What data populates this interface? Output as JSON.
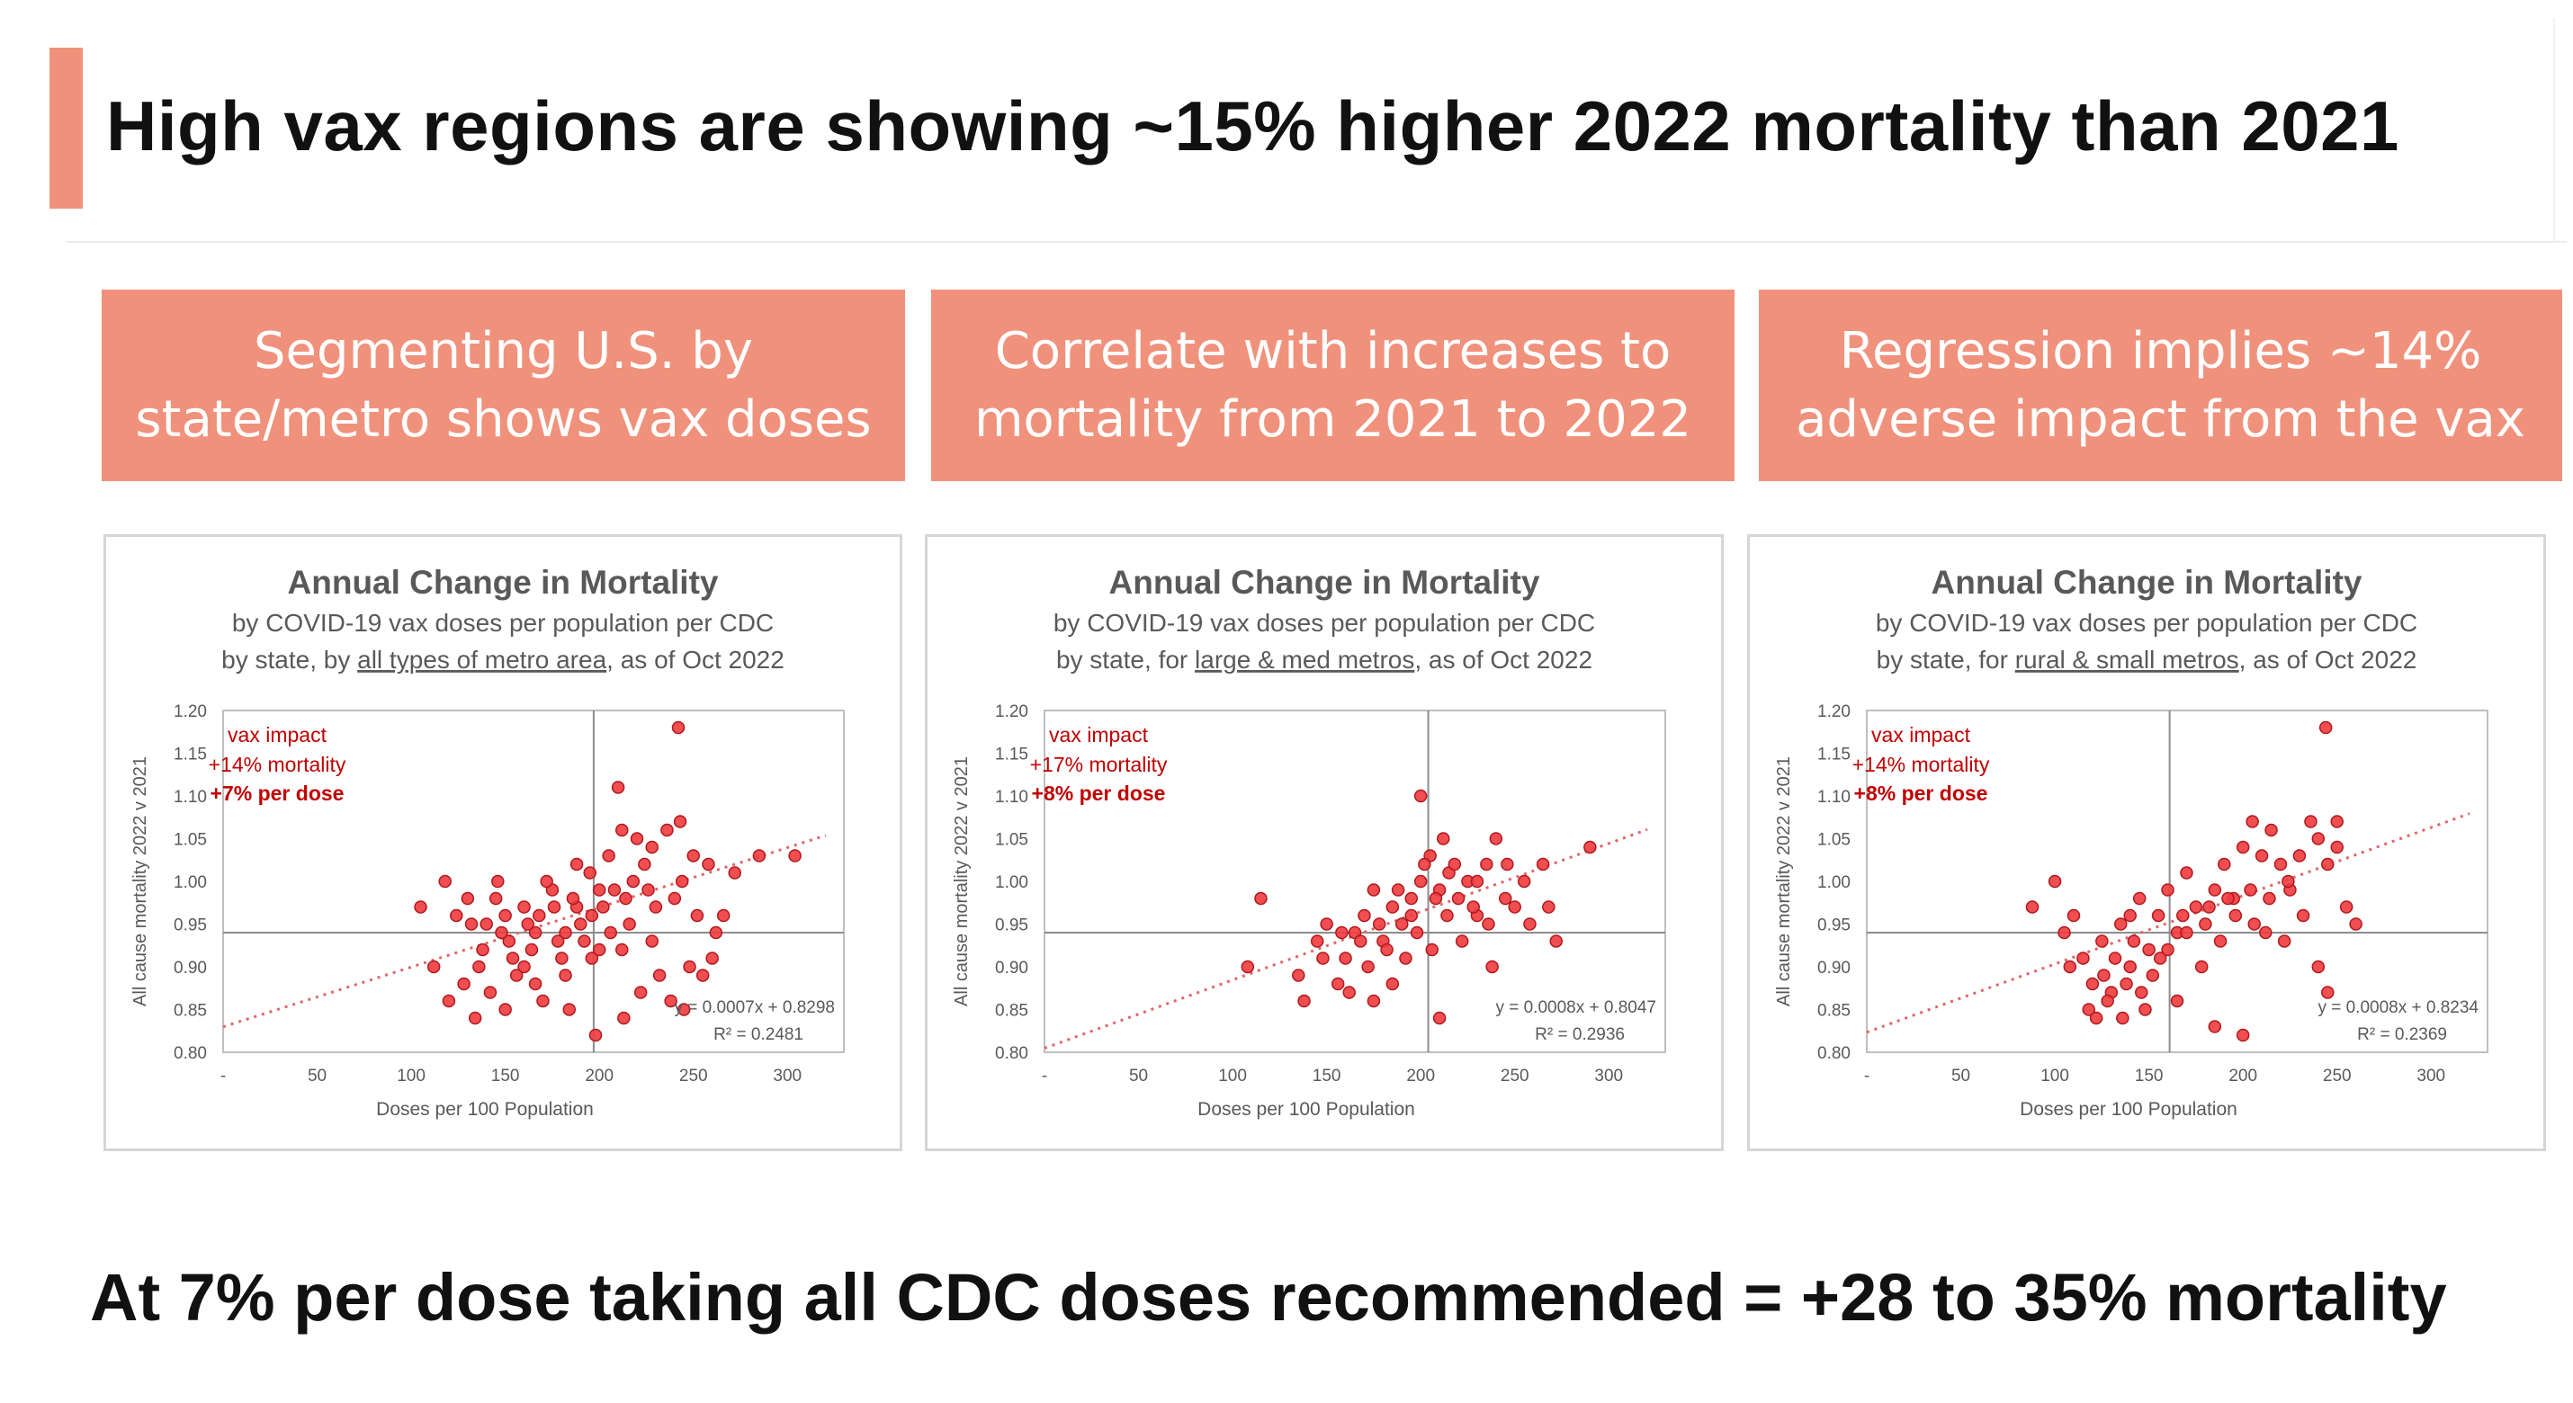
{
  "title": "High vax regions are showing ~15% higher 2022 mortality than 2021",
  "banners": [
    "Segmenting U.S. by\nstate/metro shows vax doses",
    "Correlate with increases to\nmortality from 2021 to 2022",
    "Regression implies ~14%\nadverse impact from the vax"
  ],
  "footer": "At 7% per dose taking all CDC doses recommended = +28 to 35% mortality",
  "colors": {
    "accent": "#f0917c",
    "points": "#e8292f",
    "annotation": "#c00000"
  },
  "chart_data": [
    {
      "type": "scatter",
      "title": "Annual Change in Mortality",
      "subtitle_line1": "by COVID-19 vax doses per population per CDC",
      "subtitle_line2_pre": "by state, by ",
      "subtitle_line2_link": "all types of metro area",
      "subtitle_line2_post": ", as of Oct 2022",
      "xlabel": "Doses per 100 Population",
      "ylabel": "All cause mortality 2022 v 2021",
      "xlim": [
        0,
        330
      ],
      "ylim": [
        0.8,
        1.2
      ],
      "x_ticks": [
        "-",
        "50",
        "100",
        "150",
        "200",
        "250",
        "300"
      ],
      "y_ticks": [
        "0.80",
        "0.85",
        "0.90",
        "0.95",
        "1.00",
        "1.05",
        "1.10",
        "1.15",
        "1.20"
      ],
      "ref_x": 197,
      "ref_y": 0.94,
      "annotation": [
        "vax impact",
        "+14% mortality",
        "+7% per dose"
      ],
      "trend": {
        "slope": 0.0007,
        "intercept": 0.8298
      },
      "equation": "y = 0.0007x + 0.8298",
      "r2": "R² = 0.2481",
      "points": [
        [
          105,
          0.97
        ],
        [
          118,
          1.0
        ],
        [
          132,
          0.95
        ],
        [
          138,
          0.92
        ],
        [
          145,
          0.98
        ],
        [
          152,
          0.93
        ],
        [
          160,
          0.9
        ],
        [
          168,
          0.96
        ],
        [
          175,
          0.99
        ],
        [
          182,
          0.94
        ],
        [
          188,
          0.97
        ],
        [
          195,
          1.01
        ],
        [
          128,
          0.88
        ],
        [
          142,
          0.87
        ],
        [
          156,
          0.89
        ],
        [
          170,
          0.86
        ],
        [
          184,
          0.85
        ],
        [
          198,
          0.82
        ],
        [
          213,
          0.84
        ],
        [
          222,
          0.87
        ],
        [
          232,
          0.89
        ],
        [
          245,
          0.85
        ],
        [
          255,
          0.89
        ],
        [
          238,
          0.86
        ],
        [
          205,
          1.03
        ],
        [
          212,
          1.06
        ],
        [
          220,
          1.05
        ],
        [
          228,
          1.04
        ],
        [
          236,
          1.06
        ],
        [
          243,
          1.07
        ],
        [
          250,
          1.03
        ],
        [
          258,
          1.02
        ],
        [
          266,
          0.96
        ],
        [
          272,
          1.01
        ],
        [
          285,
          1.03
        ],
        [
          304,
          1.03
        ],
        [
          242,
          1.18
        ],
        [
          210,
          1.11
        ],
        [
          150,
          0.96
        ],
        [
          164,
          0.92
        ],
        [
          178,
          0.93
        ],
        [
          190,
          0.95
        ],
        [
          202,
          0.97
        ],
        [
          214,
          0.98
        ],
        [
          226,
          0.99
        ],
        [
          136,
          0.9
        ],
        [
          148,
          0.94
        ],
        [
          160,
          0.97
        ],
        [
          172,
          1.0
        ],
        [
          186,
          0.98
        ],
        [
          196,
          0.96
        ],
        [
          208,
          0.99
        ],
        [
          218,
          1.0
        ],
        [
          230,
          0.97
        ],
        [
          240,
          0.98
        ],
        [
          252,
          0.96
        ],
        [
          262,
          0.94
        ],
        [
          124,
          0.96
        ],
        [
          140,
          0.95
        ],
        [
          154,
          0.91
        ],
        [
          166,
          0.94
        ],
        [
          180,
          0.91
        ],
        [
          192,
          0.93
        ],
        [
          200,
          0.99
        ],
        [
          216,
          0.95
        ],
        [
          228,
          0.93
        ],
        [
          248,
          0.9
        ],
        [
          260,
          0.91
        ],
        [
          130,
          0.98
        ],
        [
          146,
          1.0
        ],
        [
          162,
          0.95
        ],
        [
          176,
          0.97
        ],
        [
          188,
          1.02
        ],
        [
          206,
          0.94
        ],
        [
          224,
          1.02
        ],
        [
          244,
          1.0
        ],
        [
          112,
          0.9
        ],
        [
          120,
          0.86
        ],
        [
          134,
          0.84
        ],
        [
          150,
          0.85
        ],
        [
          166,
          0.88
        ],
        [
          182,
          0.89
        ],
        [
          196,
          0.91
        ],
        [
          212,
          0.92
        ],
        [
          200,
          0.92
        ]
      ]
    },
    {
      "type": "scatter",
      "title": "Annual Change in Mortality",
      "subtitle_line1": "by COVID-19 vax doses per population per CDC",
      "subtitle_line2_pre": "by state, for ",
      "subtitle_line2_link": "large & med metros",
      "subtitle_line2_post": ", as of Oct 2022",
      "xlabel": "Doses per 100 Population",
      "ylabel": "All cause mortality 2022 v 2021",
      "xlim": [
        0,
        330
      ],
      "ylim": [
        0.8,
        1.2
      ],
      "x_ticks": [
        "-",
        "50",
        "100",
        "150",
        "200",
        "250",
        "300"
      ],
      "y_ticks": [
        "0.80",
        "0.85",
        "0.90",
        "0.95",
        "1.00",
        "1.05",
        "1.10",
        "1.15",
        "1.20"
      ],
      "ref_x": 204,
      "ref_y": 0.94,
      "annotation": [
        "vax impact",
        "+17% mortality",
        "+8% per dose"
      ],
      "trend": {
        "slope": 0.0008,
        "intercept": 0.8047
      },
      "equation": "y = 0.0008x + 0.8047",
      "r2": "R² = 0.2936",
      "points": [
        [
          108,
          0.9
        ],
        [
          115,
          0.98
        ],
        [
          138,
          0.86
        ],
        [
          145,
          0.93
        ],
        [
          150,
          0.95
        ],
        [
          156,
          0.88
        ],
        [
          160,
          0.91
        ],
        [
          165,
          0.94
        ],
        [
          170,
          0.96
        ],
        [
          175,
          0.99
        ],
        [
          180,
          0.93
        ],
        [
          185,
          0.97
        ],
        [
          190,
          0.95
        ],
        [
          195,
          0.98
        ],
        [
          200,
          1.0
        ],
        [
          205,
          1.03
        ],
        [
          210,
          0.99
        ],
        [
          215,
          1.01
        ],
        [
          220,
          0.98
        ],
        [
          225,
          1.0
        ],
        [
          230,
          0.96
        ],
        [
          235,
          1.02
        ],
        [
          240,
          1.05
        ],
        [
          245,
          0.98
        ],
        [
          250,
          0.97
        ],
        [
          258,
          0.95
        ],
        [
          265,
          1.02
        ],
        [
          272,
          0.93
        ],
        [
          290,
          1.04
        ],
        [
          200,
          1.1
        ],
        [
          210,
          0.84
        ],
        [
          238,
          0.9
        ],
        [
          175,
          0.86
        ],
        [
          185,
          0.88
        ],
        [
          192,
          0.91
        ],
        [
          198,
          0.94
        ],
        [
          206,
          0.92
        ],
        [
          214,
          0.96
        ],
        [
          222,
          0.93
        ],
        [
          230,
          1.0
        ],
        [
          236,
          0.95
        ],
        [
          162,
          0.87
        ],
        [
          172,
          0.9
        ],
        [
          182,
          0.92
        ],
        [
          195,
          0.96
        ],
        [
          208,
          0.98
        ],
        [
          218,
          1.02
        ],
        [
          228,
          0.97
        ],
        [
          246,
          1.02
        ],
        [
          255,
          1.0
        ],
        [
          268,
          0.97
        ],
        [
          135,
          0.89
        ],
        [
          148,
          0.91
        ],
        [
          158,
          0.94
        ],
        [
          168,
          0.93
        ],
        [
          178,
          0.95
        ],
        [
          188,
          0.99
        ],
        [
          202,
          1.02
        ],
        [
          212,
          1.05
        ]
      ]
    },
    {
      "type": "scatter",
      "title": "Annual Change in Mortality",
      "subtitle_line1": "by COVID-19 vax doses per population per CDC",
      "subtitle_line2_pre": "by state, for ",
      "subtitle_line2_link": "rural & small metros",
      "subtitle_line2_post": ", as of Oct 2022",
      "xlabel": "Doses per 100 Population",
      "ylabel": "All cause mortality 2022 v 2021",
      "xlim": [
        0,
        330
      ],
      "ylim": [
        0.8,
        1.2
      ],
      "x_ticks": [
        "-",
        "50",
        "100",
        "150",
        "200",
        "250",
        "300"
      ],
      "y_ticks": [
        "0.80",
        "0.85",
        "0.90",
        "0.95",
        "1.00",
        "1.05",
        "1.10",
        "1.15",
        "1.20"
      ],
      "ref_x": 161,
      "ref_y": 0.94,
      "annotation": [
        "vax impact",
        "+14% mortality",
        "+8% per dose"
      ],
      "trend": {
        "slope": 0.0008,
        "intercept": 0.8234
      },
      "equation": "y = 0.0008x + 0.8234",
      "r2": "R² = 0.2369",
      "points": [
        [
          88,
          0.97
        ],
        [
          100,
          1.0
        ],
        [
          105,
          0.94
        ],
        [
          110,
          0.96
        ],
        [
          115,
          0.91
        ],
        [
          120,
          0.88
        ],
        [
          125,
          0.93
        ],
        [
          130,
          0.87
        ],
        [
          135,
          0.95
        ],
        [
          140,
          0.9
        ],
        [
          145,
          0.98
        ],
        [
          150,
          0.92
        ],
        [
          155,
          0.96
        ],
        [
          160,
          0.99
        ],
        [
          165,
          0.94
        ],
        [
          170,
          1.01
        ],
        [
          175,
          0.97
        ],
        [
          180,
          0.95
        ],
        [
          185,
          0.99
        ],
        [
          190,
          1.02
        ],
        [
          195,
          0.98
        ],
        [
          200,
          1.04
        ],
        [
          205,
          1.07
        ],
        [
          210,
          1.03
        ],
        [
          215,
          1.06
        ],
        [
          220,
          1.02
        ],
        [
          225,
          0.99
        ],
        [
          230,
          1.03
        ],
        [
          236,
          1.07
        ],
        [
          240,
          1.05
        ],
        [
          245,
          1.02
        ],
        [
          250,
          1.07
        ],
        [
          255,
          0.97
        ],
        [
          260,
          0.95
        ],
        [
          244,
          1.18
        ],
        [
          240,
          0.9
        ],
        [
          245,
          0.87
        ],
        [
          185,
          0.83
        ],
        [
          200,
          0.82
        ],
        [
          165,
          0.86
        ],
        [
          148,
          0.85
        ],
        [
          138,
          0.88
        ],
        [
          128,
          0.86
        ],
        [
          122,
          0.84
        ],
        [
          132,
          0.91
        ],
        [
          142,
          0.93
        ],
        [
          152,
          0.89
        ],
        [
          160,
          0.92
        ],
        [
          170,
          0.94
        ],
        [
          178,
          0.9
        ],
        [
          188,
          0.93
        ],
        [
          196,
          0.96
        ],
        [
          206,
          0.95
        ],
        [
          214,
          0.98
        ],
        [
          224,
          1.0
        ],
        [
          232,
          0.96
        ],
        [
          108,
          0.9
        ],
        [
          118,
          0.85
        ],
        [
          126,
          0.89
        ],
        [
          136,
          0.84
        ],
        [
          146,
          0.87
        ],
        [
          156,
          0.91
        ],
        [
          168,
          0.96
        ],
        [
          182,
          0.97
        ],
        [
          192,
          0.98
        ],
        [
          204,
          0.99
        ],
        [
          212,
          0.94
        ],
        [
          222,
          0.93
        ],
        [
          250,
          1.04
        ],
        [
          140,
          0.96
        ]
      ]
    }
  ]
}
